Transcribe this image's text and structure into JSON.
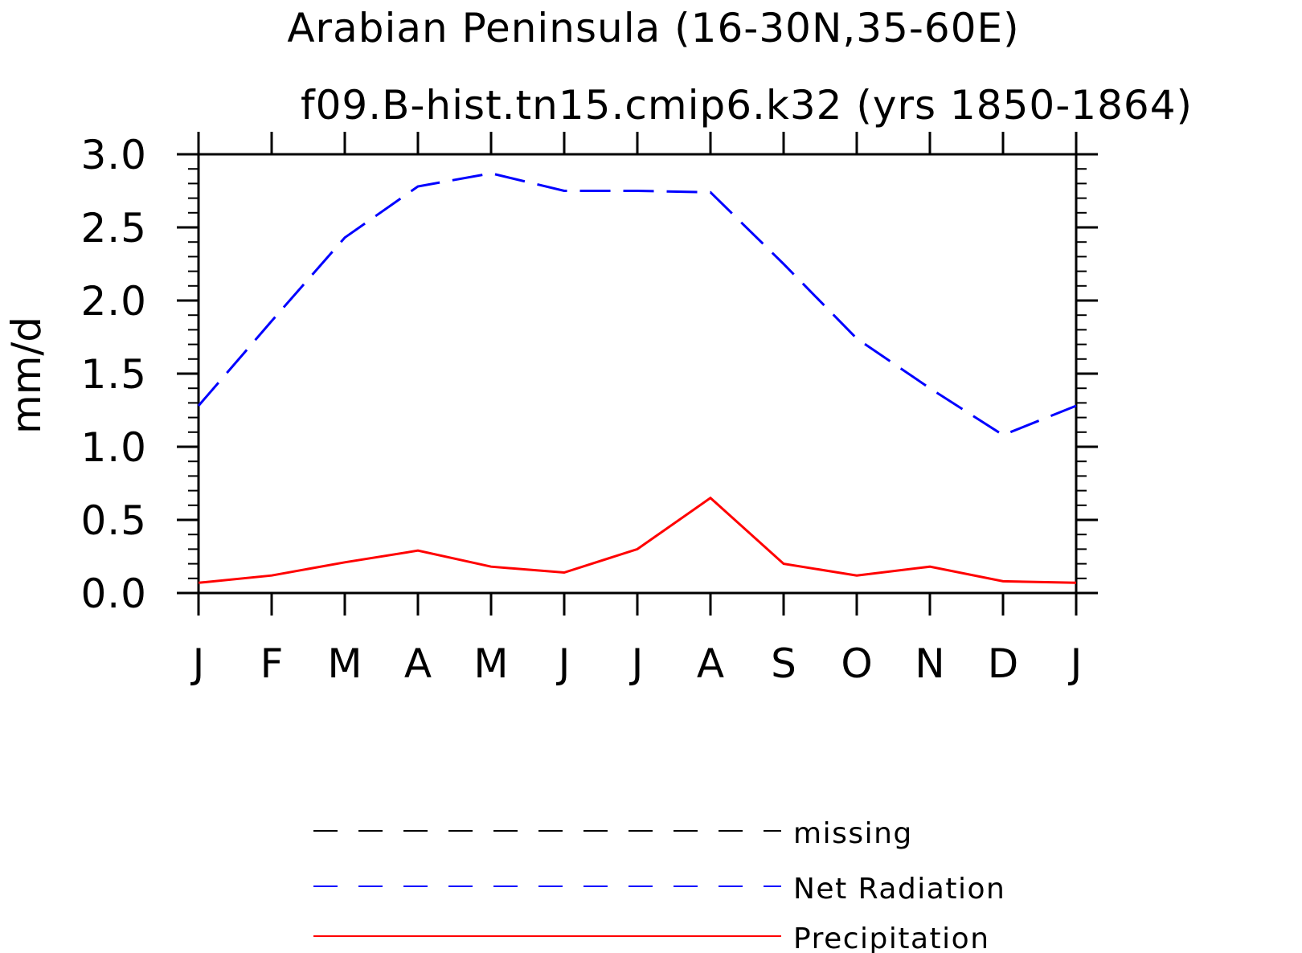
{
  "chart_data": {
    "type": "line",
    "title": "Arabian Peninsula (16-30N,35-60E)",
    "subtitle": "f09.B-hist.tn15.cmip6.k32 (yrs 1850-1864)",
    "xlabel": "",
    "ylabel": "mm/d",
    "ylim": [
      0,
      3
    ],
    "y_ticks": [
      "0.0",
      "0.5",
      "1.0",
      "1.5",
      "2.0",
      "2.5",
      "3.0"
    ],
    "categories": [
      "J",
      "F",
      "M",
      "A",
      "M",
      "J",
      "J",
      "A",
      "S",
      "O",
      "N",
      "D",
      "J"
    ],
    "series": [
      {
        "name": "missing",
        "color": "#000000",
        "dash": "dashed",
        "values": [
          null,
          null,
          null,
          null,
          null,
          null,
          null,
          null,
          null,
          null,
          null,
          null,
          null
        ]
      },
      {
        "name": "Net Radiation",
        "color": "#0000ff",
        "dash": "dashed",
        "values": [
          1.28,
          1.86,
          2.43,
          2.78,
          2.87,
          2.75,
          2.75,
          2.74,
          2.25,
          1.74,
          1.4,
          1.08,
          1.28
        ]
      },
      {
        "name": "Precipitation",
        "color": "#ff0000",
        "dash": "solid",
        "values": [
          0.07,
          0.12,
          0.21,
          0.29,
          0.18,
          0.14,
          0.3,
          0.65,
          0.2,
          0.12,
          0.18,
          0.08,
          0.07
        ]
      }
    ],
    "grid": false,
    "legend_position": "bottom"
  }
}
